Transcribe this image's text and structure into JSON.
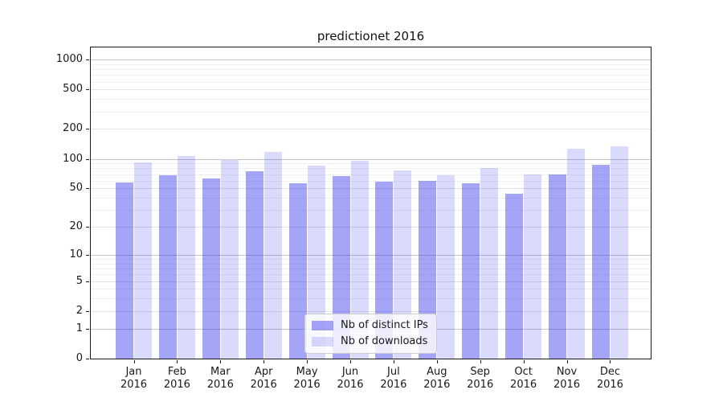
{
  "figure": {
    "background": "#ffffff",
    "axis_color": "#1a1a1a",
    "text_color": "#191919"
  },
  "chart_data": {
    "type": "bar",
    "title": "predictionet 2016",
    "categories": [
      "Jan",
      "Feb",
      "Mar",
      "Apr",
      "May",
      "Jun",
      "Jul",
      "Aug",
      "Sep",
      "Oct",
      "Nov",
      "Dec"
    ],
    "x_tick_year": "2016",
    "series": [
      {
        "name": "Nb of distinct IPs",
        "color": "rgba(30,30,235,0.40)",
        "values": [
          57,
          68,
          63,
          75,
          56,
          67,
          59,
          60,
          56,
          44,
          69,
          87
        ]
      },
      {
        "name": "Nb of downloads",
        "color": "rgba(30,30,235,0.165)",
        "values": [
          92,
          107,
          98,
          117,
          86,
          96,
          76,
          68,
          81,
          70,
          126,
          134
        ]
      }
    ],
    "y_scale": "log10(value+1)",
    "ylim": [
      0,
      1120
    ],
    "y_ticks": [
      0,
      1,
      2,
      5,
      10,
      20,
      50,
      100,
      200,
      500,
      1000
    ],
    "y_minor_ticks": [
      3,
      4,
      6,
      7,
      8,
      9,
      30,
      40,
      60,
      70,
      80,
      90,
      300,
      400,
      600,
      700,
      800,
      900
    ],
    "y_major_grid": [
      1,
      10,
      100,
      1000
    ],
    "grid": true,
    "legend_position": "lower center",
    "colors": {
      "grid_major": "#c6c6c6",
      "grid_mid": "#e3e3e3",
      "grid_minor": "#f0f0f0"
    }
  }
}
